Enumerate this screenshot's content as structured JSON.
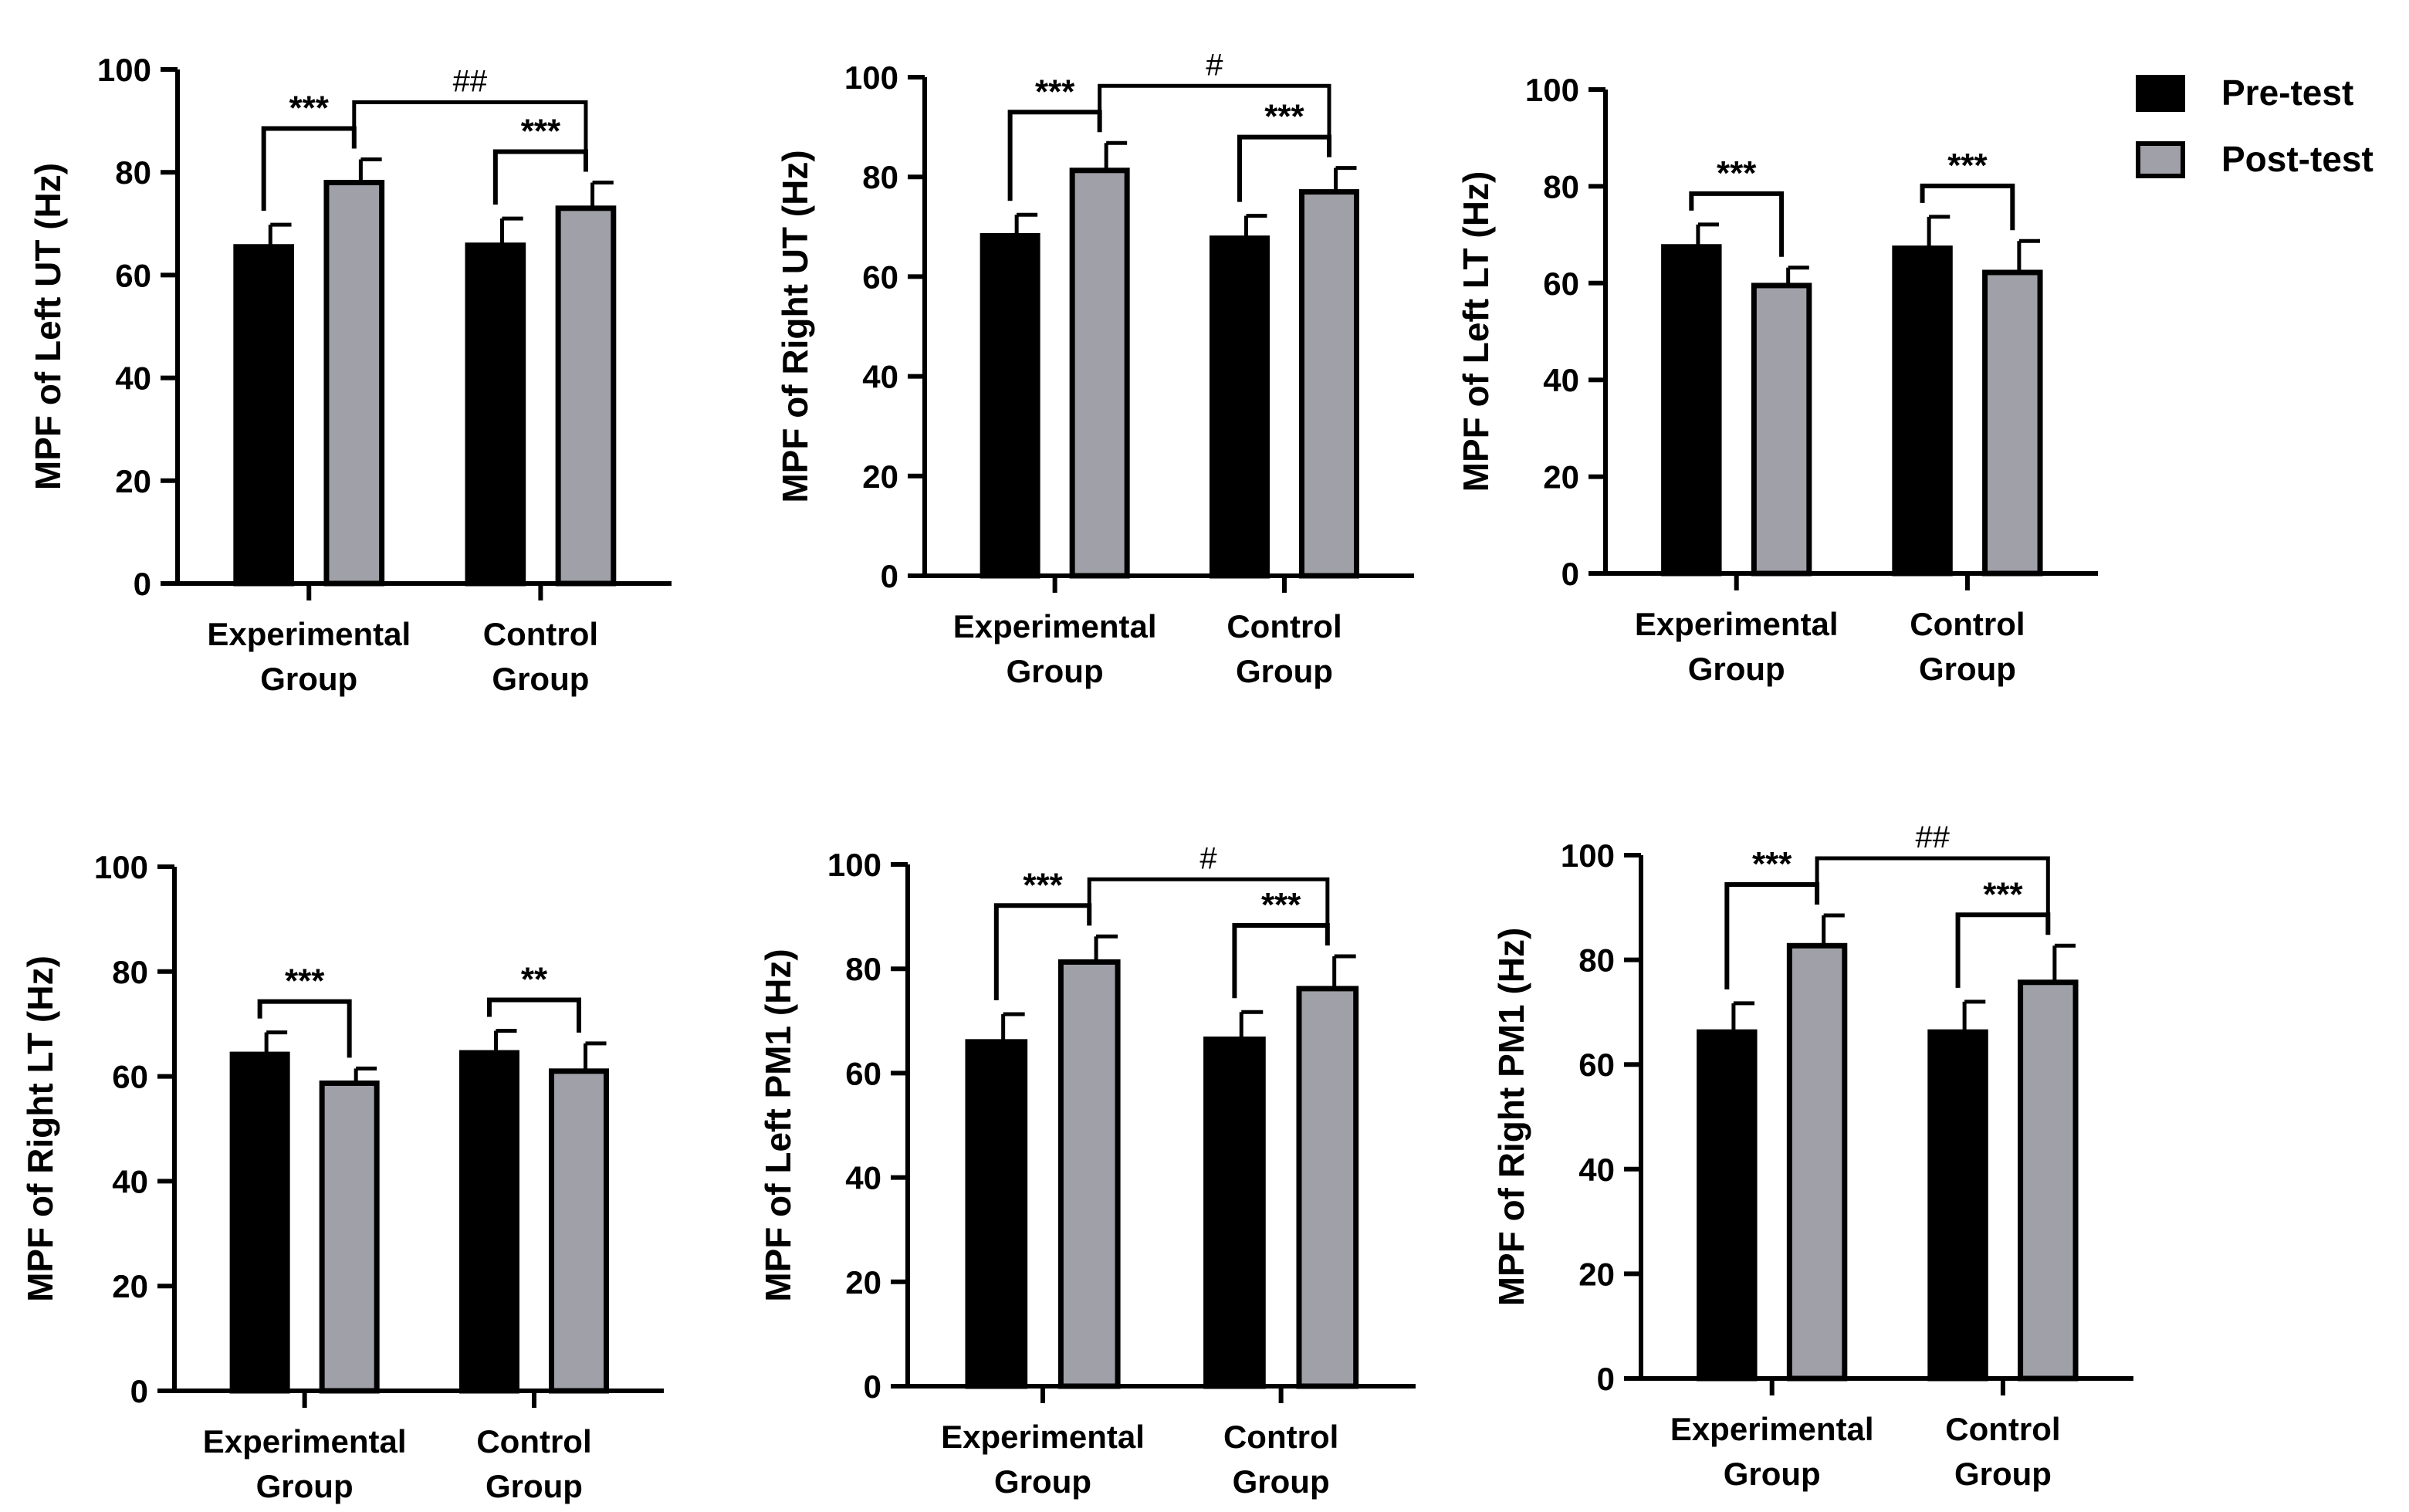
{
  "colors": {
    "pre": "#000000",
    "post": "#a0a0a8"
  },
  "legend": {
    "items": [
      {
        "label": "Pre-test",
        "color": "#000000"
      },
      {
        "label": "Post-test",
        "color": "#a0a0a8"
      }
    ]
  },
  "chart_data": [
    {
      "type": "bar",
      "ylabel": "MPF of Left UT (Hz)",
      "categories": [
        "Experimental\nGroup",
        "Control\nGroup"
      ],
      "ylim": [
        0,
        100
      ],
      "yticks": [
        0,
        20,
        40,
        60,
        80,
        100
      ],
      "series": [
        {
          "name": "Pre-test",
          "values": [
            65.5,
            65.8
          ],
          "errors": [
            4.3,
            5.2
          ]
        },
        {
          "name": "Post-test",
          "values": [
            78.0,
            73.0
          ],
          "errors": [
            4.5,
            5.0
          ]
        }
      ],
      "within": [
        "***",
        "***"
      ],
      "between": "##"
    },
    {
      "type": "bar",
      "ylabel": "MPF of Right UT (Hz)",
      "categories": [
        "Experimental\nGroup",
        "Control\nGroup"
      ],
      "ylim": [
        0,
        100
      ],
      "yticks": [
        0,
        20,
        40,
        60,
        80,
        100
      ],
      "series": [
        {
          "name": "Pre-test",
          "values": [
            68.2,
            67.7
          ],
          "errors": [
            4.2,
            4.5
          ]
        },
        {
          "name": "Post-test",
          "values": [
            81.3,
            77.0
          ],
          "errors": [
            5.5,
            4.8
          ]
        }
      ],
      "within": [
        "***",
        "***"
      ],
      "between": "#"
    },
    {
      "type": "bar",
      "ylabel": "MPF of Left LT (Hz)",
      "categories": [
        "Experimental\nGroup",
        "Control\nGroup"
      ],
      "ylim": [
        0,
        100
      ],
      "yticks": [
        0,
        20,
        40,
        60,
        80,
        100
      ],
      "series": [
        {
          "name": "Pre-test",
          "values": [
            67.5,
            67.2
          ],
          "errors": [
            4.6,
            6.5
          ]
        },
        {
          "name": "Post-test",
          "values": [
            59.5,
            62.2
          ],
          "errors": [
            3.7,
            6.5
          ]
        }
      ],
      "within": [
        "***",
        "***"
      ],
      "between": null
    },
    {
      "type": "bar",
      "ylabel": "MPF of Right LT (Hz)",
      "categories": [
        "Experimental\nGroup",
        "Control\nGroup"
      ],
      "ylim": [
        0,
        100
      ],
      "yticks": [
        0,
        20,
        40,
        60,
        80,
        100
      ],
      "series": [
        {
          "name": "Pre-test",
          "values": [
            64.2,
            64.5
          ],
          "errors": [
            4.2,
            4.2
          ]
        },
        {
          "name": "Post-test",
          "values": [
            58.7,
            61.0
          ],
          "errors": [
            2.8,
            5.3
          ]
        }
      ],
      "within": [
        "***",
        "**"
      ],
      "between": null
    },
    {
      "type": "bar",
      "ylabel": "MPF of Left PM1 (Hz)",
      "categories": [
        "Experimental\nGroup",
        "Control\nGroup"
      ],
      "ylim": [
        0,
        100
      ],
      "yticks": [
        0,
        20,
        40,
        60,
        80,
        100
      ],
      "series": [
        {
          "name": "Pre-test",
          "values": [
            66.0,
            66.5
          ],
          "errors": [
            5.3,
            5.2
          ]
        },
        {
          "name": "Post-test",
          "values": [
            81.3,
            76.2
          ],
          "errors": [
            4.9,
            6.2
          ]
        }
      ],
      "within": [
        "***",
        "***"
      ],
      "between": "#"
    },
    {
      "type": "bar",
      "ylabel": "MPF of Right PM1 (Hz)",
      "categories": [
        "Experimental\nGroup",
        "Control\nGroup"
      ],
      "ylim": [
        0,
        100
      ],
      "yticks": [
        0,
        20,
        40,
        60,
        80,
        100
      ],
      "series": [
        {
          "name": "Pre-test",
          "values": [
            66.2,
            66.2
          ],
          "errors": [
            5.5,
            5.8
          ]
        },
        {
          "name": "Post-test",
          "values": [
            82.7,
            75.7
          ],
          "errors": [
            5.8,
            7.0
          ]
        }
      ],
      "within": [
        "***",
        "***"
      ],
      "between": "##"
    }
  ]
}
